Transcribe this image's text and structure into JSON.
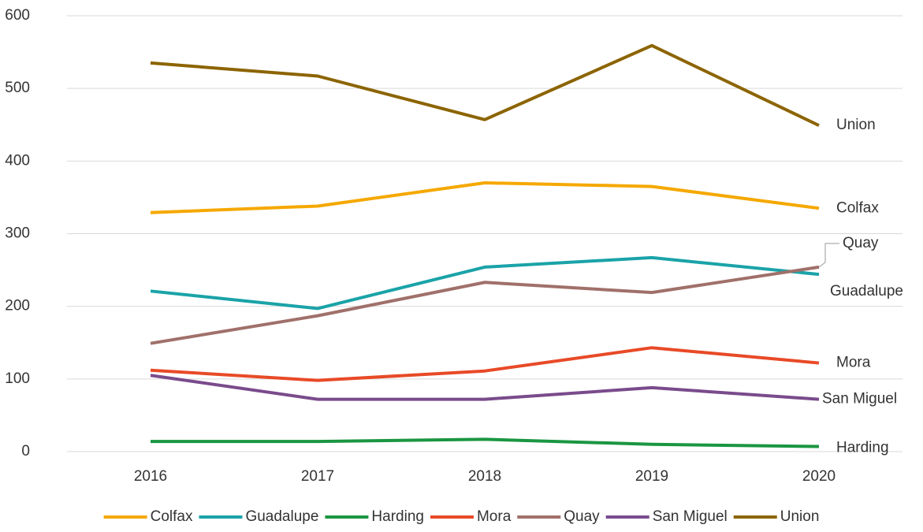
{
  "chart_data": {
    "type": "line",
    "categories": [
      "2016",
      "2017",
      "2018",
      "2019",
      "2020"
    ],
    "series": [
      {
        "name": "Colfax",
        "color": "#f5a800",
        "values": [
          329,
          338,
          370,
          365,
          335
        ]
      },
      {
        "name": "Guadalupe",
        "color": "#1aa3a8",
        "values": [
          221,
          197,
          254,
          267,
          244
        ]
      },
      {
        "name": "Harding",
        "color": "#1a9641",
        "values": [
          14,
          14,
          17,
          10,
          7
        ]
      },
      {
        "name": "Mora",
        "color": "#e84a27",
        "values": [
          112,
          98,
          111,
          143,
          122
        ]
      },
      {
        "name": "Quay",
        "color": "#a0706a",
        "values": [
          149,
          187,
          233,
          219,
          254
        ]
      },
      {
        "name": "San Miguel",
        "color": "#7a4b8c",
        "values": [
          105,
          72,
          72,
          88,
          72
        ]
      },
      {
        "name": "Union",
        "color": "#8c6400",
        "values": [
          535,
          517,
          457,
          559,
          449
        ]
      }
    ],
    "ylim": [
      0,
      600
    ],
    "yticks": [
      0,
      100,
      200,
      300,
      400,
      500,
      600
    ],
    "grid": true,
    "legend": "bottom"
  }
}
